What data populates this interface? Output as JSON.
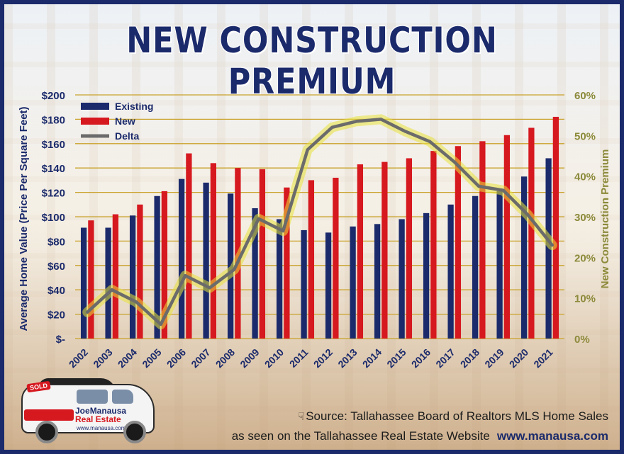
{
  "title": "NEW CONSTRUCTION PREMIUM",
  "footer": {
    "source_line": "Source: Tallahassee Board of Realtors MLS Home Sales",
    "seen_line": "as seen on the Tallahassee Real Estate Website",
    "website": "www.manausa.com"
  },
  "vehicle": {
    "sign": "SOLD",
    "brand_first": "Joe",
    "brand_second": "Manausa",
    "brand_tag": "Real Estate",
    "url": "www.manausa.com"
  },
  "colors": {
    "existing": "#1b2a6b",
    "new": "#d6181f",
    "delta": "#6b6b6b",
    "delta_glow": "#e8e23a",
    "grid": "#c9a22a",
    "right_axis": "#8c8a3a",
    "title": "#1b2a6b"
  },
  "chart_data": {
    "type": "bar+line",
    "categories": [
      "2002",
      "2003",
      "2004",
      "2005",
      "2006",
      "2007",
      "2008",
      "2009",
      "2010",
      "2011",
      "2012",
      "2013",
      "2014",
      "2015",
      "2016",
      "2017",
      "2018",
      "2019",
      "2020",
      "2021"
    ],
    "series": [
      {
        "name": "Existing",
        "type": "bar",
        "axis": "left",
        "values": [
          91,
          91,
          101,
          117,
          131,
          128,
          119,
          107,
          98,
          89,
          87,
          92,
          94,
          98,
          103,
          110,
          117,
          121,
          133,
          148
        ]
      },
      {
        "name": "New",
        "type": "bar",
        "axis": "left",
        "values": [
          97,
          102,
          110,
          121,
          152,
          144,
          140,
          139,
          124,
          130,
          132,
          143,
          145,
          148,
          154,
          158,
          162,
          167,
          173,
          182
        ]
      },
      {
        "name": "Delta",
        "type": "line",
        "axis": "right",
        "values": [
          0.065,
          0.12,
          0.09,
          0.035,
          0.155,
          0.125,
          0.17,
          0.295,
          0.265,
          0.465,
          0.52,
          0.535,
          0.54,
          0.51,
          0.485,
          0.435,
          0.375,
          0.365,
          0.305,
          0.23
        ]
      }
    ],
    "ylabel": "Average Home Value (Price Per Square Feet)",
    "y2label": "New Construction Premium",
    "ylim": [
      0,
      200
    ],
    "y2lim": [
      0,
      0.6
    ],
    "yticks": [
      "$-",
      "$20",
      "$40",
      "$60",
      "$80",
      "$100",
      "$120",
      "$140",
      "$160",
      "$180",
      "$200"
    ],
    "y2ticks": [
      "0%",
      "10%",
      "20%",
      "30%",
      "40%",
      "50%",
      "60%"
    ],
    "legend_position": "top-left",
    "grid": true
  }
}
